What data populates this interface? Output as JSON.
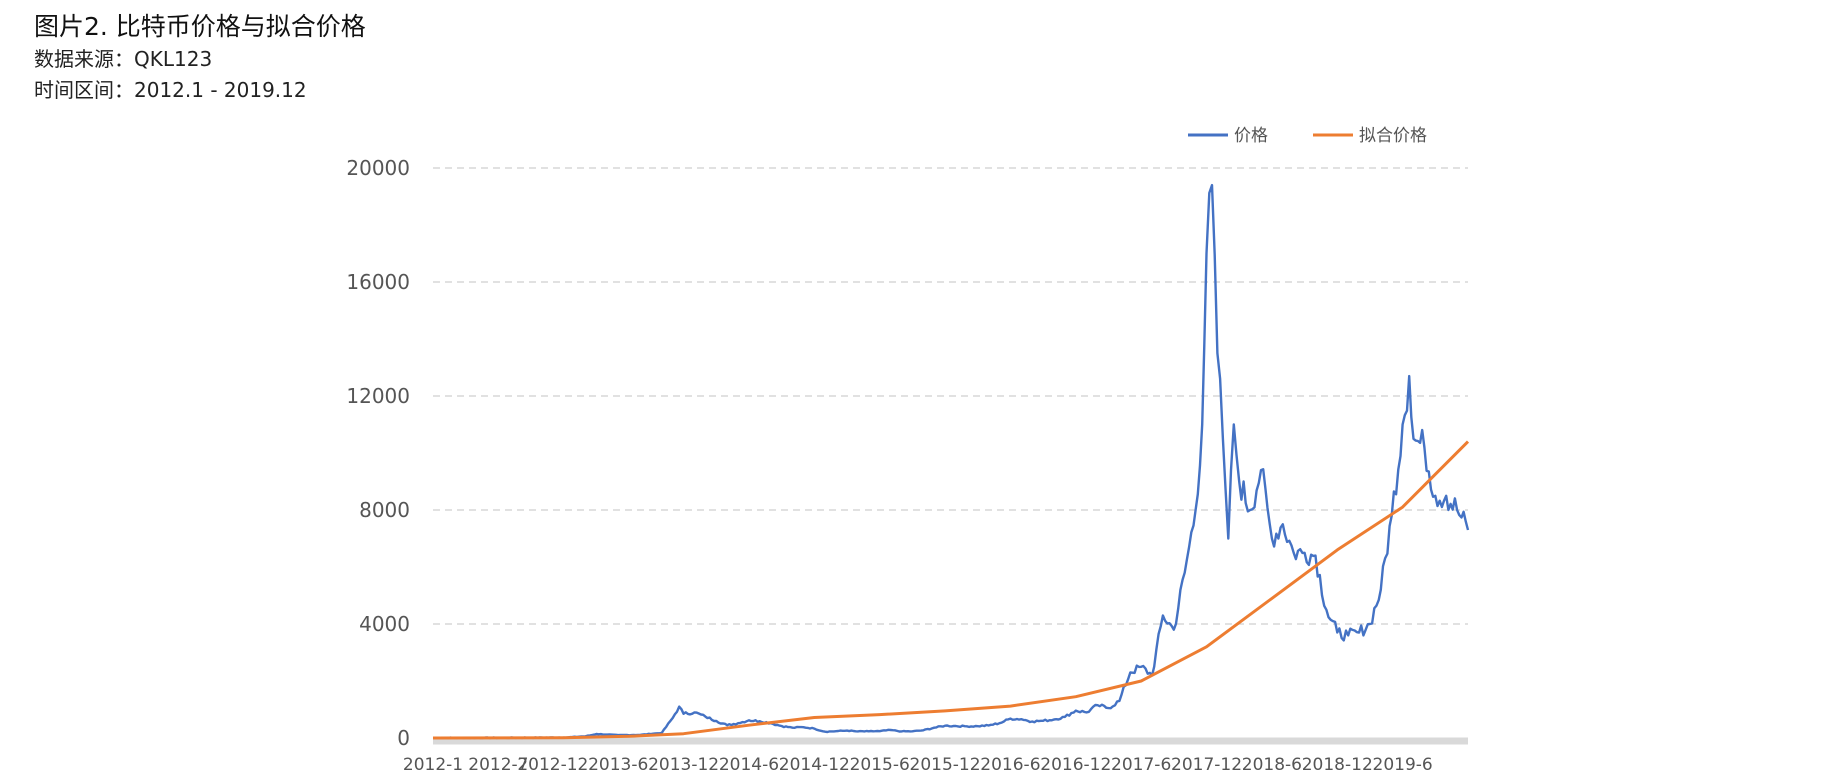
{
  "header": {
    "title": "图片2. 比特币价格与拟合价格",
    "source": "数据来源：QKL123",
    "period": "时间区间：2012.1 - 2019.12"
  },
  "chart_data": {
    "type": "line",
    "title": "图片2. 比特币价格与拟合价格",
    "xlabel": "",
    "ylabel": "",
    "ylim": [
      0,
      20000
    ],
    "yticks": [
      "0",
      "4000",
      "8000",
      "12000",
      "16000",
      "20000"
    ],
    "xticks": [
      "2012-1",
      "2012-7",
      "2012-12",
      "2013-6",
      "2013-12",
      "2014-6",
      "2014-12",
      "2015-6",
      "2015-12",
      "2016-6",
      "2016-12",
      "2017-6",
      "2017-12",
      "2018-6",
      "2018-12",
      "2019-6"
    ],
    "grid": true,
    "legend_position": "top-right",
    "x_unit": "month",
    "series": [
      {
        "name": "价格",
        "color": "#4472C4",
        "points": [
          [
            "2012-01",
            6
          ],
          [
            "2012-04",
            5
          ],
          [
            "2012-07",
            8
          ],
          [
            "2012-10",
            12
          ],
          [
            "2013-01",
            15
          ],
          [
            "2013-03",
            60
          ],
          [
            "2013-04",
            140
          ],
          [
            "2013-05",
            120
          ],
          [
            "2013-06",
            100
          ],
          [
            "2013-08",
            110
          ],
          [
            "2013-10",
            180
          ],
          [
            "2013-11",
            700
          ],
          [
            "2013-11.6",
            1100
          ],
          [
            "2013-12",
            850
          ],
          [
            "2014-01",
            900
          ],
          [
            "2014-02",
            750
          ],
          [
            "2014-03",
            600
          ],
          [
            "2014-04",
            450
          ],
          [
            "2014-05",
            520
          ],
          [
            "2014-06",
            620
          ],
          [
            "2014-07",
            590
          ],
          [
            "2014-08",
            520
          ],
          [
            "2014-09",
            420
          ],
          [
            "2014-10",
            360
          ],
          [
            "2014-11",
            380
          ],
          [
            "2014-12",
            330
          ],
          [
            "2015-01",
            220
          ],
          [
            "2015-02",
            240
          ],
          [
            "2015-03",
            260
          ],
          [
            "2015-04",
            230
          ],
          [
            "2015-05",
            235
          ],
          [
            "2015-06",
            240
          ],
          [
            "2015-07",
            280
          ],
          [
            "2015-08",
            230
          ],
          [
            "2015-09",
            235
          ],
          [
            "2015-10",
            270
          ],
          [
            "2015-11",
            360
          ],
          [
            "2015-12",
            430
          ],
          [
            "2016-01",
            420
          ],
          [
            "2016-02",
            410
          ],
          [
            "2016-03",
            415
          ],
          [
            "2016-04",
            440
          ],
          [
            "2016-05",
            520
          ],
          [
            "2016-06",
            680
          ],
          [
            "2016-07",
            660
          ],
          [
            "2016-08",
            580
          ],
          [
            "2016-09",
            605
          ],
          [
            "2016-10",
            650
          ],
          [
            "2016-11",
            740
          ],
          [
            "2016-12",
            960
          ],
          [
            "2017-01",
            900
          ],
          [
            "2017-02",
            1150
          ],
          [
            "2017-03",
            1050
          ],
          [
            "2017-04",
            1300
          ],
          [
            "2017-05",
            2300
          ],
          [
            "2017-06",
            2500
          ],
          [
            "2017-07",
            2200
          ],
          [
            "2017-08",
            4300
          ],
          [
            "2017-09",
            3800
          ],
          [
            "2017-10",
            5800
          ],
          [
            "2017-11",
            8000
          ],
          [
            "2017-11.6",
            11000
          ],
          [
            "2017-12",
            17000
          ],
          [
            "2017-12.5",
            19400
          ],
          [
            "2018-01",
            13500
          ],
          [
            "2018-01.5",
            10500
          ],
          [
            "2018-02",
            7000
          ],
          [
            "2018-02.5",
            11000
          ],
          [
            "2018-03",
            9000
          ],
          [
            "2018-04",
            8000
          ],
          [
            "2018-05",
            9400
          ],
          [
            "2018-06",
            7000
          ],
          [
            "2018-07",
            7500
          ],
          [
            "2018-08",
            6500
          ],
          [
            "2018-09",
            6500
          ],
          [
            "2018-10",
            6400
          ],
          [
            "2018-11",
            4500
          ],
          [
            "2018-12",
            3700
          ],
          [
            "2019-01",
            3600
          ],
          [
            "2019-02",
            3700
          ],
          [
            "2019-03",
            4000
          ],
          [
            "2019-04",
            5200
          ],
          [
            "2019-05",
            7800
          ],
          [
            "2019-06",
            11000
          ],
          [
            "2019-06.6",
            12700
          ],
          [
            "2019-07",
            10500
          ],
          [
            "2019-08",
            10200
          ],
          [
            "2019-09",
            8500
          ],
          [
            "2019-10",
            8500
          ],
          [
            "2019-11",
            8000
          ],
          [
            "2019-12",
            7300
          ]
        ]
      },
      {
        "name": "拟合价格",
        "color": "#ED7D31",
        "points": [
          [
            "2012-01",
            0
          ],
          [
            "2013-01",
            10
          ],
          [
            "2013-07",
            60
          ],
          [
            "2013-12",
            150
          ],
          [
            "2014-06",
            450
          ],
          [
            "2014-12",
            720
          ],
          [
            "2015-06",
            820
          ],
          [
            "2015-12",
            950
          ],
          [
            "2016-06",
            1120
          ],
          [
            "2016-12",
            1450
          ],
          [
            "2017-06",
            2000
          ],
          [
            "2017-12",
            3200
          ],
          [
            "2018-06",
            4900
          ],
          [
            "2018-12",
            6600
          ],
          [
            "2019-06",
            8100
          ],
          [
            "2019-12",
            10400
          ]
        ]
      }
    ]
  }
}
